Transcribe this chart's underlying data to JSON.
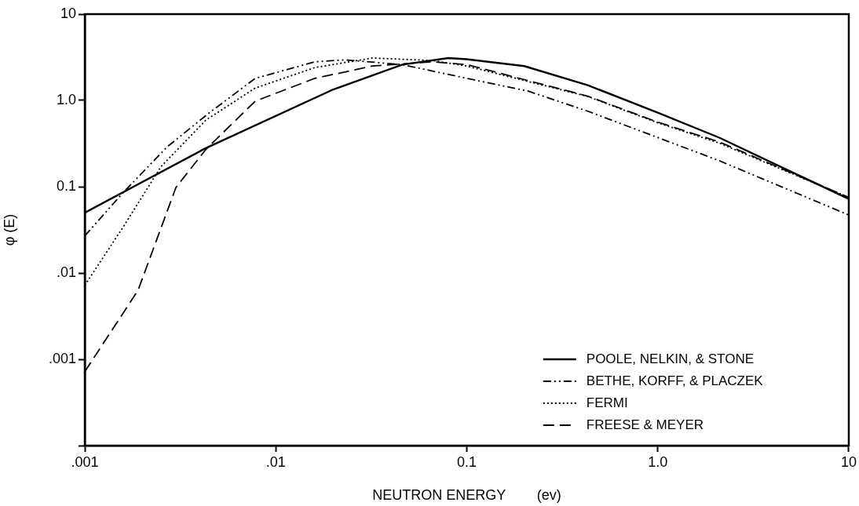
{
  "chart_data": {
    "type": "line",
    "xlabel": "NEUTRON ENERGY        (ev)",
    "ylabel": "φ (E)",
    "log": "xy",
    "grid": false,
    "legend": "bottom right",
    "marker": "none",
    "xlim": [
      0.001,
      10
    ],
    "ylim": [
      0.0001,
      10
    ],
    "xticks": [
      {
        "value": 0.001,
        "label": ".001"
      },
      {
        "value": 0.01,
        "label": ".01"
      },
      {
        "value": 0.1,
        "label": "0.1"
      },
      {
        "value": 1,
        "label": "1.0"
      },
      10
    ],
    "yticks": [
      {
        "value": 0.0001,
        "label": null
      },
      {
        "value": 0.001,
        "label": ".001"
      },
      {
        "value": 0.01,
        "label": ".01"
      },
      {
        "value": 0.1,
        "label": "0.1"
      },
      {
        "value": 1,
        "label": "1.0"
      },
      10
    ],
    "series": [
      {
        "name": "POOLE, NELKIN, & STONE",
        "color": "#000000",
        "line_style": "solid",
        "x": [
          0.001,
          0.0043,
          0.02,
          0.046,
          0.08,
          0.1,
          0.2,
          0.43,
          1.0,
          2.1,
          10
        ],
        "values": [
          0.05,
          0.28,
          1.34,
          2.6,
          3.1,
          3.0,
          2.5,
          1.5,
          0.72,
          0.37,
          0.072
        ]
      },
      {
        "name": "BETHE, KORFF, & PLACZEK",
        "color": "#000000",
        "line_style": "dashdot",
        "x": [
          0.001,
          0.0016,
          0.0027,
          0.0046,
          0.0078,
          0.016,
          0.023,
          0.046,
          0.105,
          0.21,
          0.43,
          2.1,
          10
        ],
        "values": [
          0.027,
          0.087,
          0.29,
          0.75,
          1.8,
          2.8,
          2.95,
          2.6,
          1.76,
          1.28,
          0.75,
          0.2,
          0.047
        ]
      },
      {
        "name": "FERMI",
        "color": "#000000",
        "line_style": "dotted",
        "x": [
          0.001,
          0.0016,
          0.0025,
          0.0043,
          0.0078,
          0.016,
          0.032,
          0.066,
          0.1,
          0.43,
          1.0,
          2.1,
          10
        ],
        "values": [
          0.0072,
          0.035,
          0.17,
          0.59,
          1.39,
          2.4,
          3.1,
          2.9,
          2.5,
          1.11,
          0.55,
          0.32,
          0.075
        ]
      },
      {
        "name": "FREESE & MEYER",
        "color": "#000000",
        "line_style": "dashed",
        "x": [
          0.001,
          0.0019,
          0.003,
          0.0043,
          0.0078,
          0.016,
          0.032,
          0.066,
          0.1,
          0.43,
          1.0,
          2.1,
          10
        ],
        "values": [
          0.00072,
          0.0063,
          0.098,
          0.27,
          0.98,
          1.8,
          2.5,
          2.8,
          2.6,
          1.12,
          0.56,
          0.33,
          0.075
        ]
      }
    ]
  }
}
